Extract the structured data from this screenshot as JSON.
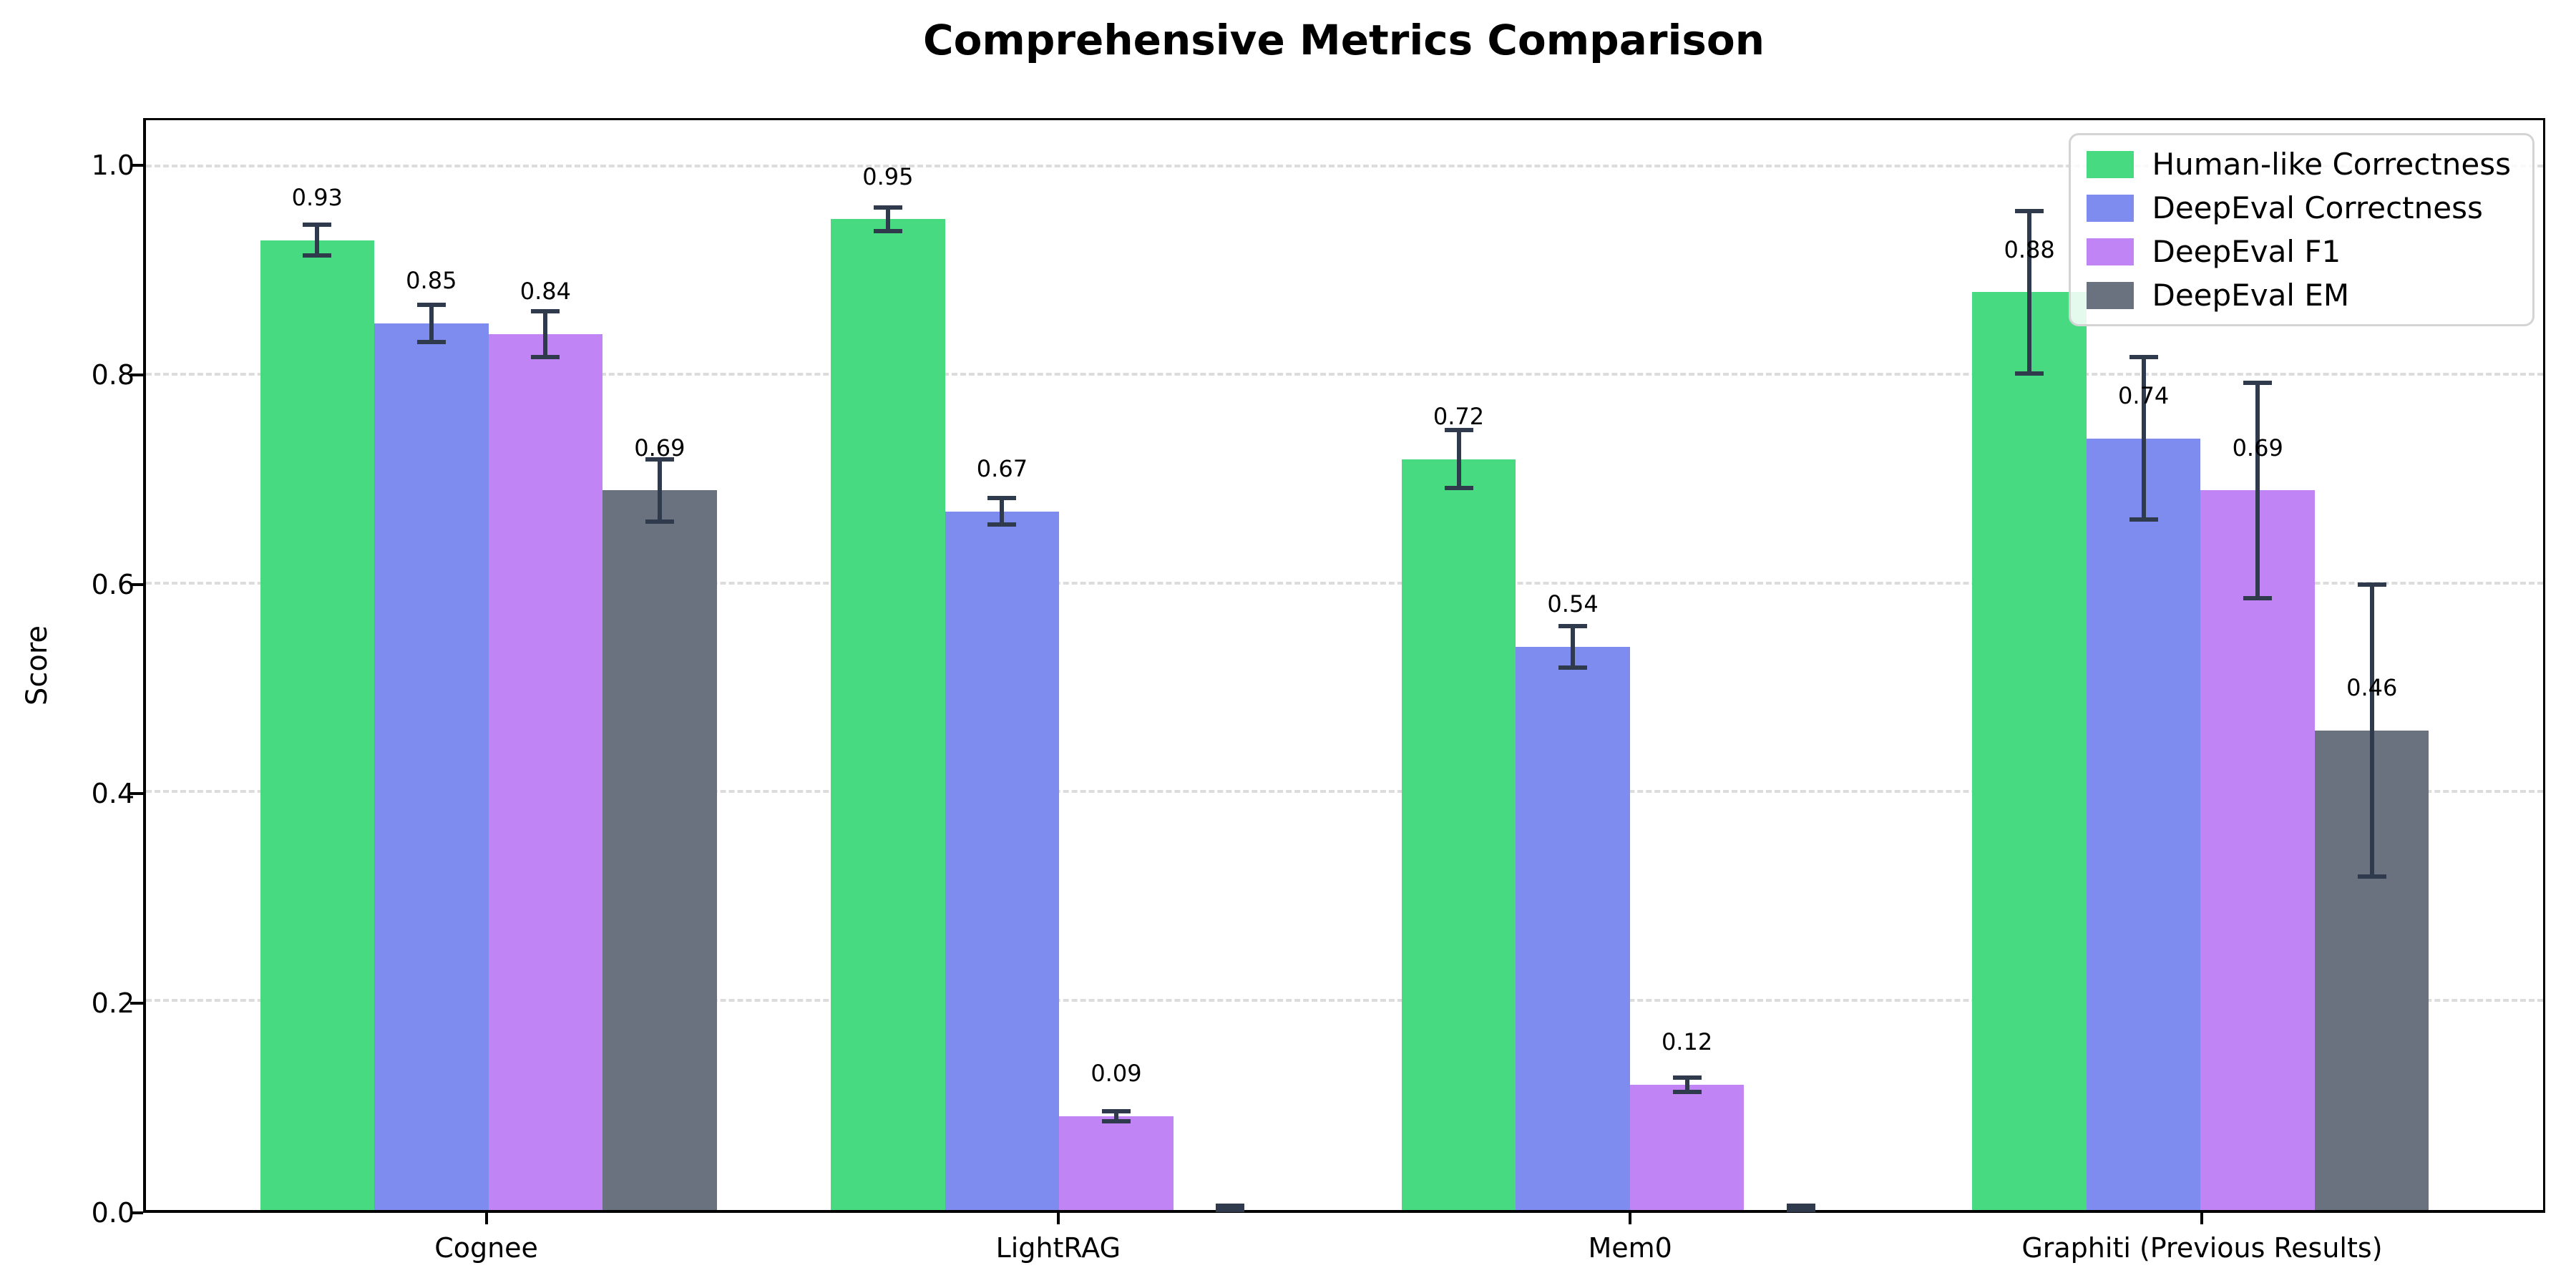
{
  "chart_data": {
    "type": "bar",
    "title": "Comprehensive Metrics Comparison",
    "ylabel": "Score",
    "xlabel": "",
    "categories": [
      "Cognee",
      "LightRAG",
      "Mem0",
      "Graphiti (Previous Results)"
    ],
    "series": [
      {
        "name": "Human-like Correctness",
        "color": "#48da81",
        "values": [
          0.93,
          0.95,
          0.72,
          0.88
        ],
        "errors": [
          0.015,
          0.011,
          0.028,
          0.078
        ],
        "labels": [
          "0.93",
          "0.95",
          "0.72",
          "0.88"
        ]
      },
      {
        "name": "DeepEval Correctness",
        "color": "#7e8bef",
        "values": [
          0.85,
          0.67,
          0.54,
          0.74
        ],
        "errors": [
          0.018,
          0.013,
          0.02,
          0.078
        ],
        "labels": [
          "0.85",
          "0.67",
          "0.54",
          "0.74"
        ]
      },
      {
        "name": "DeepEval F1",
        "color": "#c084f5",
        "values": [
          0.84,
          0.09,
          0.12,
          0.69
        ],
        "errors": [
          0.022,
          0.005,
          0.007,
          0.103
        ],
        "labels": [
          "0.84",
          "0.09",
          "0.12",
          "0.69"
        ]
      },
      {
        "name": "DeepEval EM",
        "color": "#6a7280",
        "values": [
          0.69,
          0.0,
          0.0,
          0.46
        ],
        "errors": [
          0.03,
          0.004,
          0.004,
          0.14
        ],
        "labels": [
          "0.69",
          null,
          null,
          "0.46"
        ]
      }
    ],
    "yticks": [
      "0.0",
      "0.2",
      "0.4",
      "0.6",
      "0.8",
      "1.0"
    ],
    "ylim": [
      0,
      1.045
    ],
    "grid": "horizontal-dashed",
    "legend_position": "upper-right",
    "error_bar_color": "#2f3b4c",
    "grid_color": "#dcdcdc",
    "axis_color": "#000000",
    "background_color": "#ffffff"
  }
}
